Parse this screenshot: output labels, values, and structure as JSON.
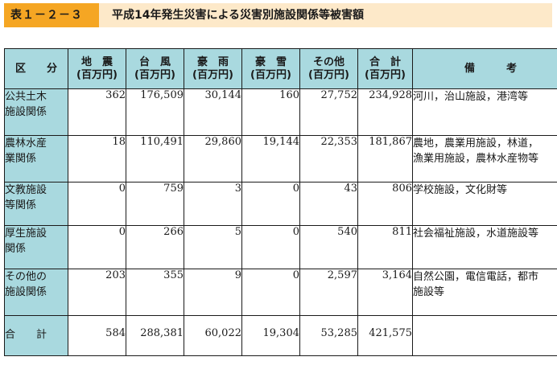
{
  "title": {
    "label": "表１－２－３",
    "text": "平成14年発生災害による災害別施設関係等被害額"
  },
  "table": {
    "headers": [
      {
        "line1": "区　　分",
        "line2": ""
      },
      {
        "line1": "地　震",
        "line2": "(百万円)"
      },
      {
        "line1": "台　風",
        "line2": "(百万円)"
      },
      {
        "line1": "豪　雨",
        "line2": "(百万円)"
      },
      {
        "line1": "豪　雪",
        "line2": "(百万円)"
      },
      {
        "line1": "その他",
        "line2": "(百万円)"
      },
      {
        "line1": "合　計",
        "line2": "(百万円)"
      },
      {
        "line1": "備　　　考",
        "line2": ""
      }
    ],
    "rows": [
      {
        "label1": "公共土木",
        "label2": "施設関係",
        "values": [
          "362",
          "176,509",
          "30,144",
          "160",
          "27,752",
          "234,928"
        ],
        "note1": "河川，治山施設，港湾等",
        "note2": ""
      },
      {
        "label1": "農林水産",
        "label2": "業関係",
        "values": [
          "18",
          "110,491",
          "29,860",
          "19,144",
          "22,353",
          "181,867"
        ],
        "note1": "農地，農業用施設，林道，",
        "note2": "漁業用施設，農林水産物等"
      },
      {
        "label1": "文教施設",
        "label2": "等関係",
        "values": [
          "0",
          "759",
          "3",
          "0",
          "43",
          "806"
        ],
        "note1": "学校施設，文化財等",
        "note2": ""
      },
      {
        "label1": "厚生施設",
        "label2": "関係",
        "values": [
          "0",
          "266",
          "5",
          "0",
          "540",
          "811"
        ],
        "note1": "社会福祉施設，水道施設等",
        "note2": ""
      },
      {
        "label1": "その他の",
        "label2": "施設関係",
        "values": [
          "203",
          "355",
          "9",
          "0",
          "2,597",
          "3,164"
        ],
        "note1": "自然公園，電信電話，都市",
        "note2": "施設等"
      }
    ],
    "total": {
      "label": "合　　計",
      "values": [
        "584",
        "288,381",
        "60,022",
        "19,304",
        "53,285",
        "421,575"
      ],
      "note": ""
    }
  }
}
